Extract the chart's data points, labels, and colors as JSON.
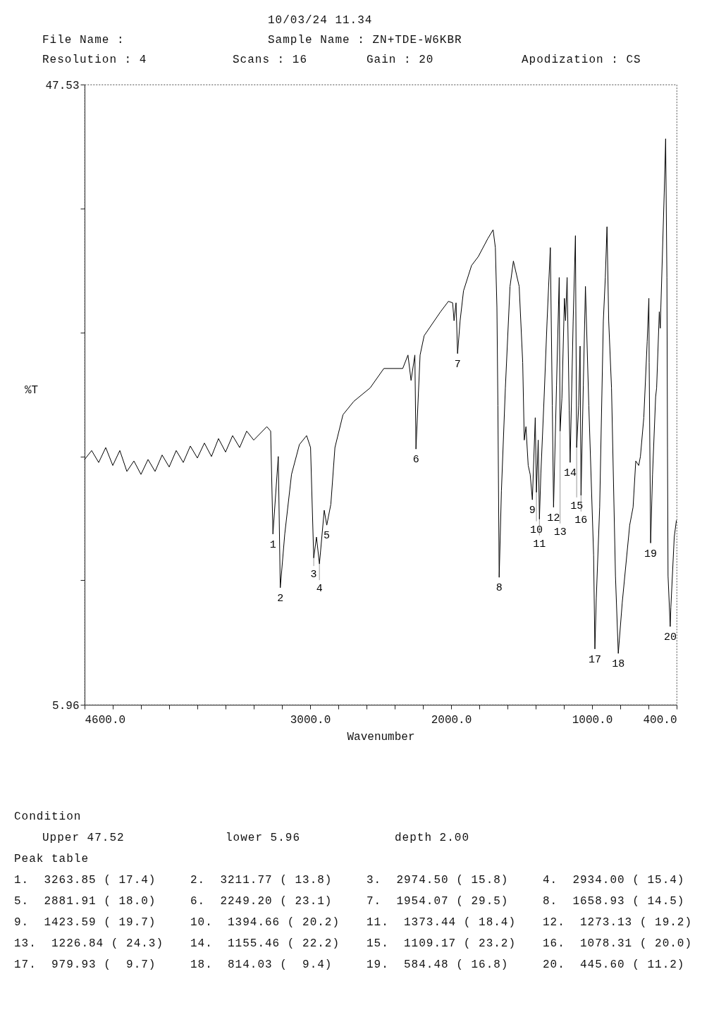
{
  "chart_data": {
    "type": "line",
    "xlabel": "Wavenumber",
    "ylabel": "%T",
    "color": "#000000",
    "xlim": [
      4600,
      400
    ],
    "ylim": [
      5.96,
      47.53
    ],
    "xticks": [
      {
        "value": 4600,
        "label": "4600.0"
      },
      {
        "value": 4400,
        "label": null
      },
      {
        "value": 4200,
        "label": null
      },
      {
        "value": 4000,
        "label": null
      },
      {
        "value": 3800,
        "label": null
      },
      {
        "value": 3600,
        "label": null
      },
      {
        "value": 3400,
        "label": null
      },
      {
        "value": 3200,
        "label": null
      },
      {
        "value": 3000,
        "label": "3000.0"
      },
      {
        "value": 2800,
        "label": null
      },
      {
        "value": 2600,
        "label": null
      },
      {
        "value": 2400,
        "label": null
      },
      {
        "value": 2200,
        "label": null
      },
      {
        "value": 2000,
        "label": "2000.0"
      },
      {
        "value": 1800,
        "label": null
      },
      {
        "value": 1600,
        "label": null
      },
      {
        "value": 1400,
        "label": null
      },
      {
        "value": 1200,
        "label": null
      },
      {
        "value": 1000,
        "label": "1000.0"
      },
      {
        "value": 800,
        "label": null
      },
      {
        "value": 600,
        "label": null
      },
      {
        "value": 400,
        "label": "400.0"
      }
    ],
    "yticks": [
      5.96,
      {
        "value": 14.3,
        "label": null
      },
      {
        "value": 22.61,
        "label": null
      },
      {
        "value": 30.92,
        "label": null
      },
      {
        "value": 39.22,
        "label": null
      },
      47.53
    ],
    "x": [
      402,
      417,
      441,
      445.6,
      461,
      465,
      469,
      478,
      488,
      512,
      516,
      523,
      542,
      549,
      571,
      584.48,
      595,
      597,
      609,
      633,
      657,
      669,
      690,
      709,
      733,
      786,
      814.03,
      834,
      862,
      882,
      894,
      906,
      920,
      946,
      970,
      979.93,
      989,
      1023,
      1047,
      1062,
      1078.31,
      1085,
      1095,
      1109.17,
      1118,
      1134,
      1155.46,
      1162,
      1177,
      1188,
      1196,
      1214,
      1226.84,
      1233,
      1252,
      1273.13,
      1282,
      1296,
      1319,
      1340,
      1363,
      1373.44,
      1382,
      1394.66,
      1403,
      1423.59,
      1439,
      1453,
      1469,
      1481,
      1492,
      1517,
      1558,
      1582,
      1615,
      1643,
      1658.93,
      1668,
      1675,
      1686,
      1702,
      1740,
      1807,
      1855,
      1912,
      1936,
      1954.07,
      1965,
      1979,
      1989,
      2019,
      2075,
      2191,
      2220,
      2249.2,
      2257,
      2284,
      2306,
      2343,
      2477,
      2574,
      2690,
      2767,
      2824,
      2853,
      2881.91,
      2900,
      2934,
      2955,
      2974.5,
      2997,
      3025,
      3076,
      3132,
      3180,
      3211.77,
      3226,
      3263.85,
      3280,
      3307,
      3400,
      3450,
      3500,
      3550,
      3600,
      3650,
      3700,
      3750,
      3800,
      3850,
      3900,
      3950,
      4000,
      4050,
      4100,
      4150,
      4200,
      4250,
      4300,
      4350,
      4400,
      4450,
      4500,
      4550,
      4600
    ],
    "values": [
      18.3,
      17.2,
      12.5,
      11.2,
      14.6,
      23.2,
      34.6,
      43.9,
      40.3,
      32.6,
      31.2,
      32.3,
      27.2,
      26.6,
      21.4,
      16.8,
      28.9,
      33.2,
      30.3,
      25.2,
      22.6,
      22.0,
      22.3,
      19.2,
      18.0,
      12.8,
      9.4,
      14.6,
      27.2,
      31.7,
      38.0,
      34.6,
      31.7,
      19.2,
      13.1,
      9.7,
      16.0,
      26.0,
      34.0,
      27.4,
      20.0,
      30.0,
      26.0,
      23.2,
      37.4,
      31.7,
      22.2,
      25.7,
      34.6,
      31.7,
      33.2,
      26.5,
      24.3,
      34.6,
      27.4,
      19.2,
      26.0,
      36.6,
      31.7,
      26.6,
      21.5,
      18.4,
      23.7,
      20.2,
      25.2,
      19.7,
      21.4,
      22.0,
      24.6,
      23.7,
      28.9,
      34.0,
      35.7,
      34.0,
      27.2,
      20.3,
      14.5,
      26.0,
      32.6,
      36.6,
      37.8,
      37.2,
      36.0,
      35.4,
      33.7,
      31.7,
      29.5,
      32.9,
      31.7,
      32.9,
      33.0,
      32.3,
      30.7,
      29.4,
      23.1,
      29.4,
      27.7,
      29.4,
      28.5,
      28.5,
      27.2,
      26.3,
      25.4,
      23.2,
      19.4,
      18.0,
      19.0,
      15.4,
      17.2,
      15.8,
      23.2,
      24.0,
      23.4,
      21.4,
      17.4,
      13.8,
      22.6,
      17.4,
      24.3,
      24.6,
      23.7,
      24.3,
      23.2,
      24.0,
      22.9,
      23.8,
      22.6,
      23.5,
      22.5,
      23.3,
      22.2,
      23.0,
      21.9,
      22.7,
      21.6,
      22.4,
      21.4,
      22.3,
      21.6,
      23.0,
      22.0,
      23.2,
      22.2,
      23.0,
      22.4
    ],
    "annotations": [
      "10/03/24 11.34",
      "File Name :",
      "Sample Name : ZN+TDE-W6KBR",
      "Resolution : 4",
      "Scans : 16",
      "Gain : 20",
      "Apodization : CS",
      "Condition",
      "Upper 47.52",
      "lower 5.96",
      "depth 2.00",
      "Peak table",
      "1.  3263.85 ( 17.4)",
      "2.  3211.77 ( 13.8)",
      "3.  2974.50 ( 15.8)",
      "4.  2934.00 ( 15.4)",
      "5.  2881.91 ( 18.0)",
      "6.  2249.20 ( 23.1)",
      "7.  1954.07 ( 29.5)",
      "8.  1658.93 ( 14.5)",
      "9.  1423.59 ( 19.7)",
      "10.  1394.66 ( 20.2)",
      "11.  1373.44 ( 18.4)",
      "12.  1273.13 ( 19.2)",
      "13.  1226.84 ( 24.3)",
      "14.  1155.46 ( 22.2)",
      "15.  1109.17 ( 23.2)",
      "16.  1078.31 ( 20.0)",
      "17.  979.93 (  9.7)",
      "18.  814.03 (  9.4)",
      "19.  584.48 ( 16.8)",
      "20.  445.60 ( 11.2)",
      {
        "text": "1",
        "x": 3263.85,
        "y": 17.4
      },
      {
        "text": "2",
        "x": 3211.77,
        "y": 13.8
      },
      {
        "text": "3",
        "x": 2974.5,
        "y": 15.8
      },
      {
        "text": "4",
        "x": 2934,
        "y": 15.4
      },
      {
        "text": "5",
        "x": 2881.91,
        "y": 18.0
      },
      {
        "text": "6",
        "x": 2249.2,
        "y": 23.1
      },
      {
        "text": "7",
        "x": 1954.07,
        "y": 29.5
      },
      {
        "text": "8",
        "x": 1658.93,
        "y": 14.5
      },
      {
        "text": "9",
        "x": 1423.59,
        "y": 19.7
      },
      {
        "text": "10",
        "x": 1394.66,
        "y": 20.2
      },
      {
        "text": "11",
        "x": 1373.44,
        "y": 18.4
      },
      {
        "text": "12",
        "x": 1273.13,
        "y": 19.2
      },
      {
        "text": "13",
        "x": 1226.84,
        "y": 24.3
      },
      {
        "text": "14",
        "x": 1155.46,
        "y": 22.2
      },
      {
        "text": "15",
        "x": 1109.17,
        "y": 23.2
      },
      {
        "text": "16",
        "x": 1078.31,
        "y": 20.0
      },
      {
        "text": "17",
        "x": 979.93,
        "y": 9.7
      },
      {
        "text": "18",
        "x": 814.03,
        "y": 9.4
      },
      {
        "text": "19",
        "x": 584.48,
        "y": 16.8
      },
      {
        "text": "20",
        "x": 445.6,
        "y": 11.2
      }
    ]
  }
}
